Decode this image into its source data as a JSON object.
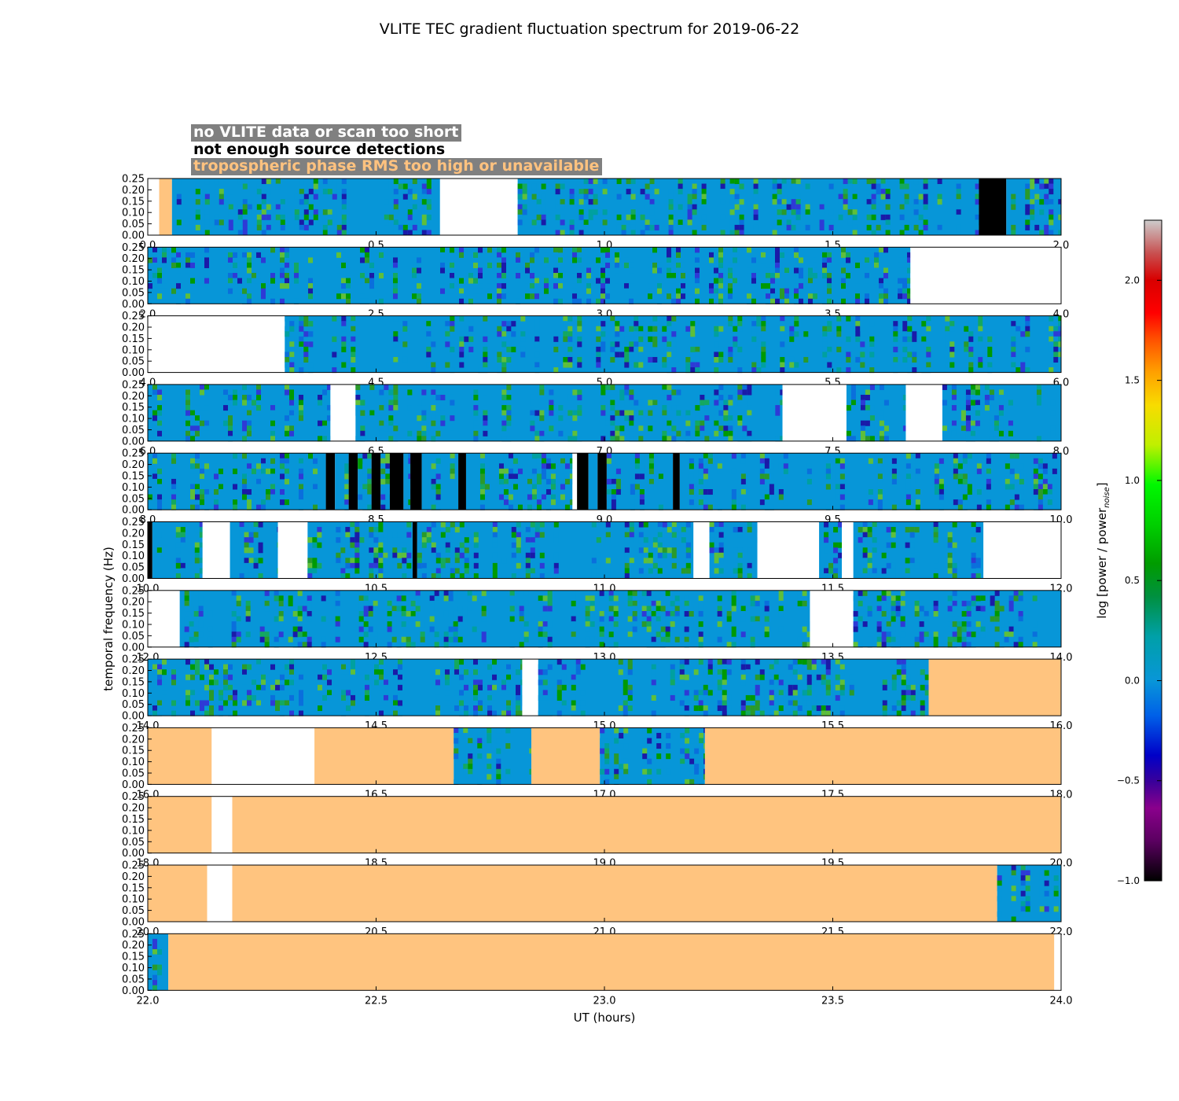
{
  "figure": {
    "title": "VLITE TEC gradient fluctuation spectrum for 2019-06-22"
  },
  "legend": {
    "items": [
      {
        "label": "no VLITE data or scan too short"
      },
      {
        "label": "not enough source detections"
      },
      {
        "label": "tropospheric phase RMS too high or unavailable"
      }
    ]
  },
  "colors": {
    "no_data": "#ffffff",
    "few_detections": "#000000",
    "troposphere": "#ffc47f",
    "noise_floor": "#0796d8"
  },
  "chart_data": {
    "type": "heatmap",
    "title": "VLITE TEC gradient fluctuation spectrum for 2019-06-22",
    "xlabel": "UT (hours)",
    "ylabel": "temporal frequency (Hz)",
    "ylim": [
      0.0,
      0.25
    ],
    "yticks": [
      "0.00",
      "0.05",
      "0.10",
      "0.15",
      "0.20",
      "0.25"
    ],
    "colorbar": {
      "label": "log [power / power_noise]",
      "label_main": "log [power / power",
      "label_sub": "noise",
      "label_end": "]",
      "range": [
        -1.0,
        2.3
      ],
      "ticks": [
        "−1.0",
        "−0.5",
        "0.0",
        "0.5",
        "1.0",
        "1.5",
        "2.0"
      ],
      "tick_values": [
        -1.0,
        -0.5,
        0.0,
        0.5,
        1.0,
        1.5,
        2.0
      ]
    },
    "panels": [
      {
        "xlim": [
          0.0,
          2.0
        ],
        "xticks": [
          "0.0",
          "0.5",
          "1.0",
          "1.5",
          "2.0"
        ],
        "segments": [
          [
            0.0,
            0.025,
            "none"
          ],
          [
            0.025,
            0.053,
            "tropo"
          ],
          [
            0.053,
            0.64,
            "data"
          ],
          [
            0.64,
            0.81,
            "none"
          ],
          [
            0.81,
            1.82,
            "data"
          ],
          [
            1.82,
            1.88,
            "few"
          ],
          [
            1.88,
            2.0,
            "data"
          ]
        ]
      },
      {
        "xlim": [
          2.0,
          4.0
        ],
        "xticks": [
          "2.0",
          "2.5",
          "3.0",
          "3.5",
          "4.0"
        ],
        "segments": [
          [
            2.0,
            3.67,
            "data"
          ],
          [
            3.67,
            4.0,
            "none"
          ]
        ]
      },
      {
        "xlim": [
          4.0,
          6.0
        ],
        "xticks": [
          "4.0",
          "4.5",
          "5.0",
          "5.5",
          "6.0"
        ],
        "segments": [
          [
            4.0,
            4.3,
            "none"
          ],
          [
            4.3,
            6.0,
            "data"
          ]
        ]
      },
      {
        "xlim": [
          6.0,
          8.0
        ],
        "xticks": [
          "6.0",
          "6.5",
          "7.0",
          "7.5",
          "8.0"
        ],
        "segments": [
          [
            6.0,
            6.4,
            "data"
          ],
          [
            6.4,
            6.455,
            "none"
          ],
          [
            6.455,
            7.39,
            "data"
          ],
          [
            7.39,
            7.53,
            "none"
          ],
          [
            7.53,
            7.66,
            "data"
          ],
          [
            7.66,
            7.74,
            "none"
          ],
          [
            7.74,
            8.0,
            "data"
          ]
        ]
      },
      {
        "xlim": [
          8.0,
          10.0
        ],
        "xticks": [
          "8.0",
          "8.5",
          "9.0",
          "9.5",
          "10.0"
        ],
        "segments": [
          [
            8.0,
            8.39,
            "data"
          ],
          [
            8.39,
            8.41,
            "few"
          ],
          [
            8.41,
            8.44,
            "data"
          ],
          [
            8.44,
            8.46,
            "few"
          ],
          [
            8.46,
            8.49,
            "data"
          ],
          [
            8.49,
            8.51,
            "few"
          ],
          [
            8.51,
            8.53,
            "data"
          ],
          [
            8.53,
            8.56,
            "few"
          ],
          [
            8.56,
            8.575,
            "data"
          ],
          [
            8.575,
            8.6,
            "few"
          ],
          [
            8.6,
            8.68,
            "data"
          ],
          [
            8.68,
            8.697,
            "few"
          ],
          [
            8.697,
            8.93,
            "data"
          ],
          [
            8.93,
            8.94,
            "none"
          ],
          [
            8.94,
            8.965,
            "few"
          ],
          [
            8.965,
            8.985,
            "data"
          ],
          [
            8.985,
            9.005,
            "few"
          ],
          [
            9.005,
            9.15,
            "data"
          ],
          [
            9.15,
            9.165,
            "few"
          ],
          [
            9.165,
            10.0,
            "data"
          ]
        ]
      },
      {
        "xlim": [
          10.0,
          12.0
        ],
        "xticks": [
          "10.0",
          "10.5",
          "11.0",
          "11.5",
          "12.0"
        ],
        "segments": [
          [
            10.0,
            10.01,
            "few"
          ],
          [
            10.01,
            10.12,
            "data"
          ],
          [
            10.12,
            10.18,
            "none"
          ],
          [
            10.18,
            10.285,
            "data"
          ],
          [
            10.285,
            10.35,
            "none"
          ],
          [
            10.35,
            10.58,
            "data"
          ],
          [
            10.58,
            10.59,
            "few"
          ],
          [
            10.59,
            11.195,
            "data"
          ],
          [
            11.195,
            11.23,
            "none"
          ],
          [
            11.23,
            11.335,
            "data"
          ],
          [
            11.335,
            11.47,
            "none"
          ],
          [
            11.47,
            11.52,
            "data"
          ],
          [
            11.52,
            11.545,
            "none"
          ],
          [
            11.545,
            11.83,
            "data"
          ],
          [
            11.83,
            12.0,
            "none"
          ]
        ]
      },
      {
        "xlim": [
          12.0,
          14.0
        ],
        "xticks": [
          "12.0",
          "12.5",
          "13.0",
          "13.5",
          "14.0"
        ],
        "segments": [
          [
            12.0,
            12.07,
            "none"
          ],
          [
            12.07,
            13.45,
            "data"
          ],
          [
            13.45,
            13.545,
            "none"
          ],
          [
            13.545,
            14.0,
            "data"
          ]
        ]
      },
      {
        "xlim": [
          14.0,
          16.0
        ],
        "xticks": [
          "14.0",
          "14.5",
          "15.0",
          "15.5",
          "16.0"
        ],
        "segments": [
          [
            14.0,
            14.82,
            "data"
          ],
          [
            14.82,
            14.855,
            "none"
          ],
          [
            14.855,
            15.71,
            "data"
          ],
          [
            15.71,
            16.0,
            "tropo"
          ]
        ]
      },
      {
        "xlim": [
          16.0,
          18.0
        ],
        "xticks": [
          "16.0",
          "16.5",
          "17.0",
          "17.5",
          "18.0"
        ],
        "segments": [
          [
            16.0,
            16.14,
            "tropo"
          ],
          [
            16.14,
            16.365,
            "none"
          ],
          [
            16.365,
            16.67,
            "tropo"
          ],
          [
            16.67,
            16.84,
            "data"
          ],
          [
            16.84,
            16.99,
            "tropo"
          ],
          [
            16.99,
            17.22,
            "data"
          ],
          [
            17.22,
            18.0,
            "tropo"
          ]
        ]
      },
      {
        "xlim": [
          18.0,
          20.0
        ],
        "xticks": [
          "18.0",
          "18.5",
          "19.0",
          "19.5",
          "20.0"
        ],
        "segments": [
          [
            18.0,
            18.14,
            "tropo"
          ],
          [
            18.14,
            18.185,
            "none"
          ],
          [
            18.185,
            20.0,
            "tropo"
          ]
        ]
      },
      {
        "xlim": [
          20.0,
          22.0
        ],
        "xticks": [
          "20.0",
          "20.5",
          "21.0",
          "21.5",
          "22.0"
        ],
        "segments": [
          [
            20.0,
            20.13,
            "tropo"
          ],
          [
            20.13,
            20.185,
            "none"
          ],
          [
            20.185,
            21.86,
            "tropo"
          ],
          [
            21.86,
            22.0,
            "data"
          ]
        ]
      },
      {
        "xlim": [
          22.0,
          24.0
        ],
        "xticks": [
          "22.0",
          "22.5",
          "23.0",
          "23.5",
          "24.0"
        ],
        "segments": [
          [
            22.0,
            22.045,
            "data"
          ],
          [
            22.045,
            23.985,
            "tropo"
          ],
          [
            23.985,
            24.0,
            "none"
          ]
        ]
      }
    ]
  }
}
